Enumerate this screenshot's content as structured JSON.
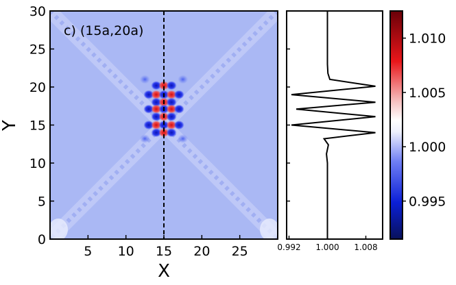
{
  "chart_data": [
    {
      "type": "heatmap",
      "panel_label": "c) (15a,20a)",
      "xlabel": "X",
      "ylabel": "Y",
      "xlim": [
        0,
        30
      ],
      "ylim": [
        0,
        30
      ],
      "x_ticks": [
        "5",
        "10",
        "15",
        "20",
        "25"
      ],
      "y_ticks": [
        "0",
        "5",
        "10",
        "15",
        "20",
        "25",
        "30"
      ],
      "background_value": 1.001,
      "cut_line_x": 15,
      "cut_line_style": "dashed",
      "hotspots": [
        {
          "x": 14,
          "y": 20.2,
          "value": 0.994
        },
        {
          "x": 15,
          "y": 20.2,
          "value": 1.009
        },
        {
          "x": 16,
          "y": 20.2,
          "value": 0.994
        },
        {
          "x": 13,
          "y": 19.0,
          "value": 0.993
        },
        {
          "x": 14,
          "y": 19.0,
          "value": 1.01
        },
        {
          "x": 15,
          "y": 19.0,
          "value": 0.993
        },
        {
          "x": 16,
          "y": 19.0,
          "value": 1.01
        },
        {
          "x": 17,
          "y": 19.0,
          "value": 0.993
        },
        {
          "x": 14,
          "y": 18.0,
          "value": 0.993
        },
        {
          "x": 15,
          "y": 18.0,
          "value": 1.01
        },
        {
          "x": 16,
          "y": 18.0,
          "value": 0.993
        },
        {
          "x": 13,
          "y": 17.1,
          "value": 0.994
        },
        {
          "x": 14,
          "y": 17.1,
          "value": 1.006
        },
        {
          "x": 15,
          "y": 17.1,
          "value": 0.995
        },
        {
          "x": 16,
          "y": 17.1,
          "value": 1.006
        },
        {
          "x": 17,
          "y": 17.1,
          "value": 0.994
        },
        {
          "x": 14,
          "y": 16.1,
          "value": 0.993
        },
        {
          "x": 15,
          "y": 16.1,
          "value": 1.01
        },
        {
          "x": 16,
          "y": 16.1,
          "value": 0.993
        },
        {
          "x": 13,
          "y": 15.0,
          "value": 0.993
        },
        {
          "x": 14,
          "y": 15.0,
          "value": 1.01
        },
        {
          "x": 15,
          "y": 15.0,
          "value": 0.993
        },
        {
          "x": 16,
          "y": 15.0,
          "value": 1.01
        },
        {
          "x": 17,
          "y": 15.0,
          "value": 0.993
        },
        {
          "x": 14,
          "y": 14.0,
          "value": 0.994
        },
        {
          "x": 15,
          "y": 14.0,
          "value": 1.009
        },
        {
          "x": 16,
          "y": 14.0,
          "value": 0.994
        },
        {
          "x": 12.5,
          "y": 21.0,
          "value": 0.997
        },
        {
          "x": 17.5,
          "y": 21.0,
          "value": 0.997
        },
        {
          "x": 12.5,
          "y": 13.2,
          "value": 0.997
        },
        {
          "x": 17.5,
          "y": 13.2,
          "value": 0.997
        }
      ]
    },
    {
      "type": "line",
      "x_ticks": [
        "0.992",
        "1.000",
        "1.008"
      ],
      "xlim": [
        0.9915,
        1.0115
      ],
      "ylim": [
        0,
        30
      ],
      "line_color": "#000000",
      "points": [
        {
          "x": 1.0,
          "y": 0
        },
        {
          "x": 1.0,
          "y": 10.0
        },
        {
          "x": 0.9998,
          "y": 11.2
        },
        {
          "x": 1.0002,
          "y": 12.4
        },
        {
          "x": 0.9993,
          "y": 13.2
        },
        {
          "x": 1.01,
          "y": 14.0
        },
        {
          "x": 0.9925,
          "y": 15.0
        },
        {
          "x": 1.01,
          "y": 16.1
        },
        {
          "x": 0.9935,
          "y": 17.1
        },
        {
          "x": 1.01,
          "y": 18.0
        },
        {
          "x": 0.9925,
          "y": 19.0
        },
        {
          "x": 1.01,
          "y": 20.1
        },
        {
          "x": 1.0005,
          "y": 21.0
        },
        {
          "x": 1.0001,
          "y": 21.8
        },
        {
          "x": 1.0,
          "y": 23.0
        },
        {
          "x": 1.0,
          "y": 30
        }
      ]
    }
  ],
  "colorbar": {
    "min": 0.9915,
    "max": 1.0125,
    "tick_values": [
      0.995,
      1.0,
      1.005,
      1.01
    ],
    "tick_labels": [
      "0.995",
      "1.000",
      "1.005",
      "1.010"
    ],
    "colors": {
      "low": "#08115a",
      "mid_low": "#2c36ef",
      "mid": "#ffffff",
      "mid_high": "#e8161a",
      "high": "#6a0008"
    }
  }
}
